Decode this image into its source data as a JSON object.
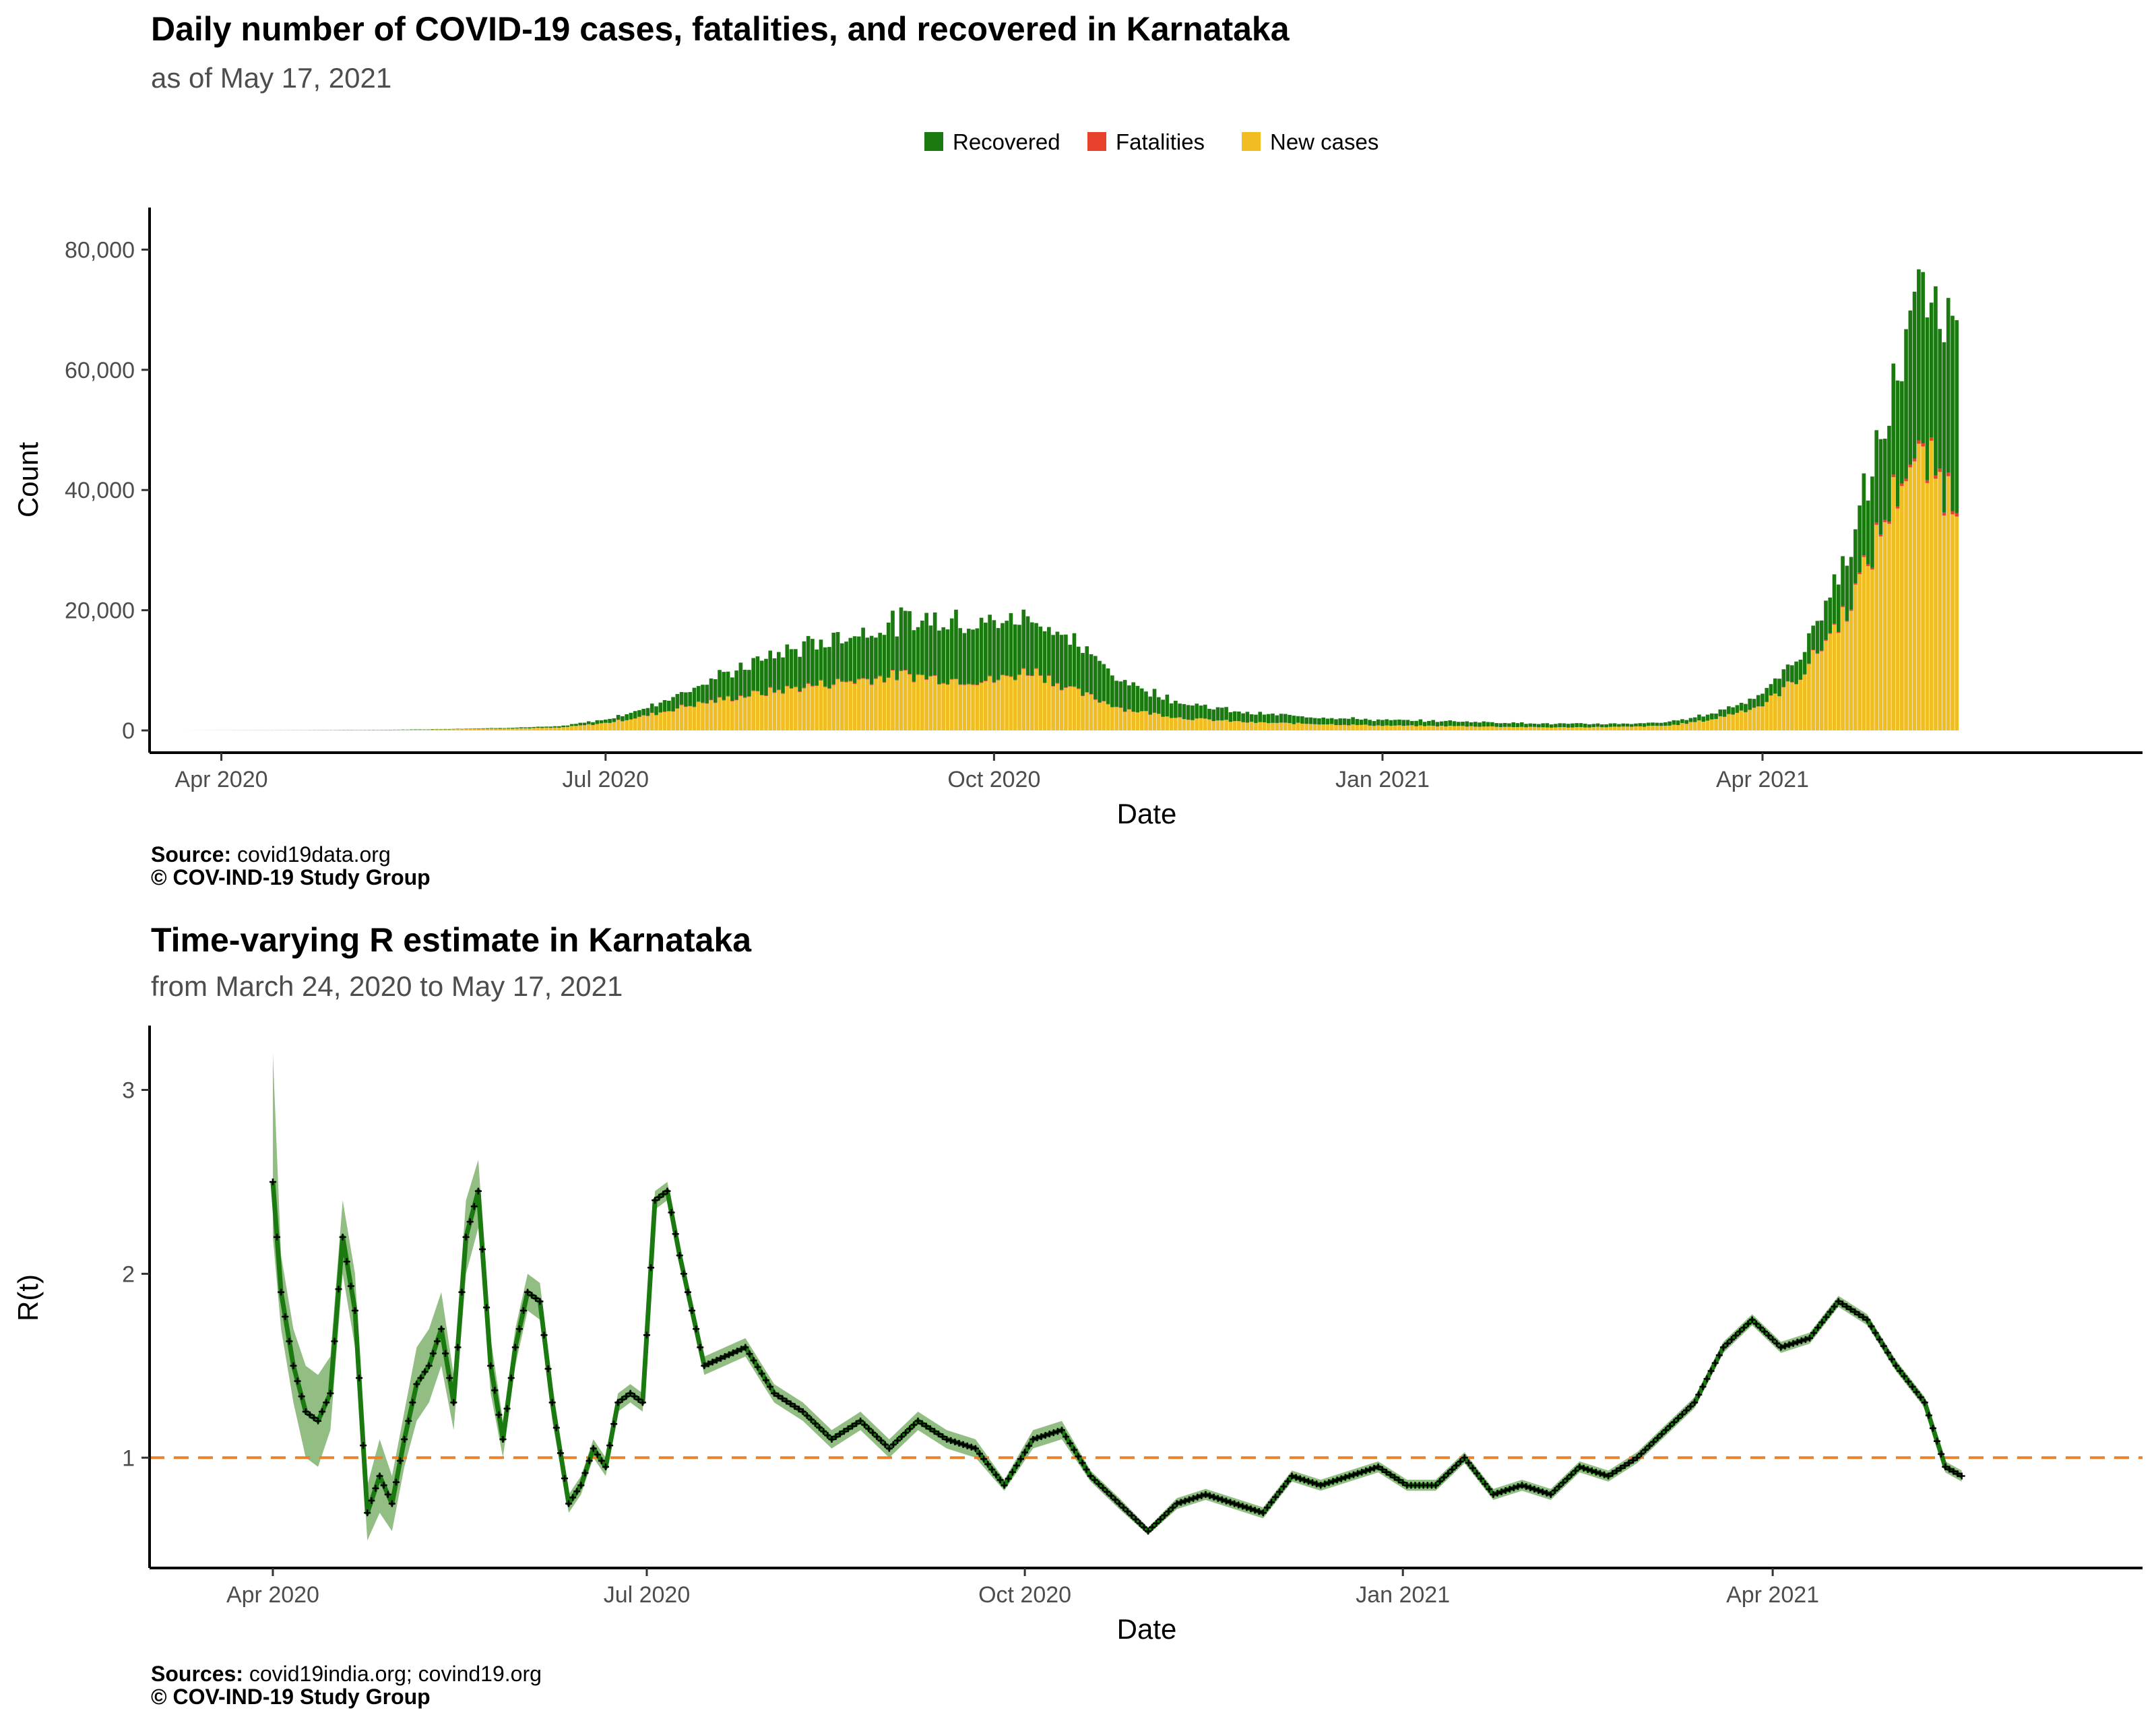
{
  "chart_data": [
    {
      "type": "bar",
      "title": "Daily number of COVID-19 cases, fatalities, and recovered in Karnataka",
      "subtitle": "as of May 17, 2021",
      "xlabel": "Date",
      "ylabel": "Count",
      "ylim": [
        0,
        87000
      ],
      "y_ticks": [
        "0",
        "20,000",
        "40,000",
        "60,000",
        "80,000"
      ],
      "y_tick_values": [
        0,
        20000,
        40000,
        60000,
        80000
      ],
      "x_ticks": [
        "Apr 2020",
        "Jul 2020",
        "Oct 2020",
        "Jan 2021",
        "Apr 2021"
      ],
      "x_tick_dates": [
        "2020-04-01",
        "2020-07-01",
        "2020-10-01",
        "2021-01-01",
        "2021-04-01"
      ],
      "xlim": [
        "2020-03-15",
        "2021-06-30"
      ],
      "stacked": true,
      "legend_position": "top",
      "legend": [
        "Recovered",
        "Fatalities",
        "New cases"
      ],
      "colors": {
        "Recovered": "#1a7a10",
        "Fatalities": "#e8412c",
        "New cases": "#f0bd23"
      },
      "series_points": {
        "x": [
          "2020-03-24",
          "2020-04-15",
          "2020-05-10",
          "2020-06-01",
          "2020-06-20",
          "2020-07-01",
          "2020-07-10",
          "2020-07-20",
          "2020-08-01",
          "2020-08-10",
          "2020-08-20",
          "2020-09-01",
          "2020-09-10",
          "2020-09-20",
          "2020-10-01",
          "2020-10-10",
          "2020-10-20",
          "2020-11-01",
          "2020-11-15",
          "2020-12-01",
          "2020-12-15",
          "2021-01-01",
          "2021-01-20",
          "2021-02-10",
          "2021-03-01",
          "2021-03-10",
          "2021-03-20",
          "2021-04-01",
          "2021-04-10",
          "2021-04-20",
          "2021-04-25",
          "2021-04-30",
          "2021-05-05",
          "2021-05-10",
          "2021-05-17"
        ],
        "new_cases": [
          10,
          30,
          70,
          250,
          450,
          1200,
          2300,
          4000,
          5500,
          6500,
          7500,
          8500,
          9200,
          8500,
          8200,
          10000,
          6500,
          3500,
          2000,
          1300,
          1100,
          800,
          700,
          500,
          600,
          800,
          1800,
          4200,
          9000,
          19000,
          26000,
          35000,
          44000,
          44000,
          38000
        ],
        "fatalities": [
          0,
          1,
          2,
          5,
          10,
          20,
          50,
          80,
          100,
          110,
          120,
          130,
          110,
          100,
          110,
          100,
          80,
          40,
          25,
          15,
          10,
          8,
          5,
          5,
          5,
          8,
          15,
          30,
          60,
          180,
          270,
          350,
          450,
          500,
          600
        ],
        "recovered": [
          0,
          10,
          30,
          80,
          200,
          600,
          1200,
          2600,
          4500,
          6000,
          7000,
          8000,
          9000,
          10000,
          9500,
          9000,
          8000,
          4500,
          2500,
          1500,
          1200,
          900,
          800,
          600,
          500,
          600,
          1000,
          1800,
          3500,
          8000,
          12000,
          15000,
          22000,
          27000,
          28000
        ]
      }
    },
    {
      "type": "line",
      "title": "Time-varying R estimate in Karnataka",
      "subtitle": "from March 24, 2020 to May 17, 2021",
      "xlabel": "Date",
      "ylabel": "R(t)",
      "ylim": [
        0.4,
        3.35
      ],
      "y_ticks": [
        "1",
        "2",
        "3"
      ],
      "y_tick_values": [
        1,
        2,
        3
      ],
      "x_ticks": [
        "Apr 2020",
        "Jul 2020",
        "Oct 2020",
        "Jan 2021",
        "Apr 2021"
      ],
      "x_tick_dates": [
        "2020-04-01",
        "2020-07-01",
        "2020-10-01",
        "2021-01-01",
        "2021-04-01"
      ],
      "xlim": [
        "2020-03-02",
        "2021-06-30"
      ],
      "reference_line": 1,
      "colors": {
        "line": "#1a7a10",
        "band": "#7fb36f",
        "reference": "#e8822c",
        "points": "#000000"
      },
      "x": [
        "2020-04-01",
        "2020-04-03",
        "2020-04-06",
        "2020-04-09",
        "2020-04-12",
        "2020-04-15",
        "2020-04-18",
        "2020-04-21",
        "2020-04-24",
        "2020-04-27",
        "2020-04-30",
        "2020-05-03",
        "2020-05-06",
        "2020-05-09",
        "2020-05-12",
        "2020-05-15",
        "2020-05-18",
        "2020-05-21",
        "2020-05-24",
        "2020-05-27",
        "2020-05-30",
        "2020-06-02",
        "2020-06-05",
        "2020-06-08",
        "2020-06-12",
        "2020-06-15",
        "2020-06-18",
        "2020-06-21",
        "2020-06-24",
        "2020-06-27",
        "2020-06-30",
        "2020-07-03",
        "2020-07-06",
        "2020-07-09",
        "2020-07-12",
        "2020-07-15",
        "2020-07-20",
        "2020-07-25",
        "2020-08-01",
        "2020-08-08",
        "2020-08-15",
        "2020-08-22",
        "2020-08-29",
        "2020-09-05",
        "2020-09-12",
        "2020-09-19",
        "2020-09-26",
        "2020-10-03",
        "2020-10-10",
        "2020-10-17",
        "2020-10-24",
        "2020-10-31",
        "2020-11-07",
        "2020-11-14",
        "2020-11-21",
        "2020-11-28",
        "2020-12-05",
        "2020-12-12",
        "2020-12-19",
        "2020-12-26",
        "2021-01-02",
        "2021-01-09",
        "2021-01-16",
        "2021-01-23",
        "2021-01-30",
        "2021-02-06",
        "2021-02-13",
        "2021-02-20",
        "2021-02-27",
        "2021-03-06",
        "2021-03-13",
        "2021-03-20",
        "2021-03-27",
        "2021-04-03",
        "2021-04-10",
        "2021-04-17",
        "2021-04-24",
        "2021-05-01",
        "2021-05-08",
        "2021-05-13",
        "2021-05-17"
      ],
      "y": [
        2.5,
        1.9,
        1.5,
        1.25,
        1.2,
        1.35,
        2.2,
        1.8,
        0.7,
        0.9,
        0.75,
        1.1,
        1.4,
        1.5,
        1.7,
        1.3,
        2.2,
        2.45,
        1.5,
        1.1,
        1.6,
        1.9,
        1.85,
        1.3,
        0.75,
        0.85,
        1.05,
        0.95,
        1.3,
        1.35,
        1.3,
        2.4,
        2.45,
        2.1,
        1.8,
        1.5,
        1.55,
        1.6,
        1.35,
        1.25,
        1.1,
        1.2,
        1.05,
        1.2,
        1.1,
        1.05,
        0.85,
        1.1,
        1.15,
        0.9,
        0.75,
        0.6,
        0.75,
        0.8,
        0.75,
        0.7,
        0.9,
        0.85,
        0.9,
        0.95,
        0.85,
        0.85,
        1.0,
        0.8,
        0.85,
        0.8,
        0.95,
        0.9,
        1.0,
        1.15,
        1.3,
        1.6,
        1.75,
        1.6,
        1.65,
        1.85,
        1.75,
        1.5,
        1.3,
        0.95,
        0.9
      ],
      "lower": [
        2.2,
        1.7,
        1.3,
        1.0,
        0.95,
        1.15,
        2.0,
        1.6,
        0.55,
        0.7,
        0.6,
        0.95,
        1.2,
        1.3,
        1.5,
        1.15,
        2.0,
        2.25,
        1.35,
        1.0,
        1.5,
        1.8,
        1.75,
        1.2,
        0.7,
        0.8,
        1.0,
        0.9,
        1.25,
        1.3,
        1.25,
        2.35,
        2.4,
        2.05,
        1.75,
        1.45,
        1.5,
        1.55,
        1.3,
        1.2,
        1.05,
        1.15,
        1.0,
        1.15,
        1.05,
        1.0,
        0.82,
        1.05,
        1.1,
        0.87,
        0.72,
        0.58,
        0.72,
        0.77,
        0.72,
        0.67,
        0.87,
        0.82,
        0.87,
        0.92,
        0.82,
        0.82,
        0.97,
        0.77,
        0.82,
        0.77,
        0.92,
        0.87,
        0.97,
        1.12,
        1.27,
        1.57,
        1.72,
        1.57,
        1.62,
        1.82,
        1.72,
        1.47,
        1.27,
        0.92,
        0.87
      ],
      "upper": [
        3.2,
        2.1,
        1.7,
        1.5,
        1.45,
        1.55,
        2.4,
        2.0,
        0.85,
        1.1,
        0.9,
        1.25,
        1.6,
        1.7,
        1.9,
        1.45,
        2.4,
        2.62,
        1.65,
        1.2,
        1.7,
        2.0,
        1.95,
        1.4,
        0.8,
        0.9,
        1.1,
        1.0,
        1.35,
        1.4,
        1.35,
        2.45,
        2.5,
        2.15,
        1.85,
        1.55,
        1.6,
        1.65,
        1.4,
        1.3,
        1.15,
        1.25,
        1.1,
        1.25,
        1.15,
        1.1,
        0.88,
        1.15,
        1.2,
        0.93,
        0.78,
        0.62,
        0.78,
        0.83,
        0.78,
        0.73,
        0.93,
        0.88,
        0.93,
        0.98,
        0.88,
        0.88,
        1.03,
        0.83,
        0.88,
        0.83,
        0.98,
        0.93,
        1.03,
        1.18,
        1.33,
        1.63,
        1.78,
        1.63,
        1.68,
        1.88,
        1.78,
        1.53,
        1.33,
        0.98,
        0.93
      ]
    }
  ],
  "captions": {
    "top_source_label": "Source:",
    "top_source_value": "covid19data.org",
    "top_copyright": "© COV-IND-19 Study Group",
    "bottom_source_label": "Sources:",
    "bottom_source_value": "covid19india.org; covind19.org",
    "bottom_copyright": "© COV-IND-19 Study Group"
  }
}
